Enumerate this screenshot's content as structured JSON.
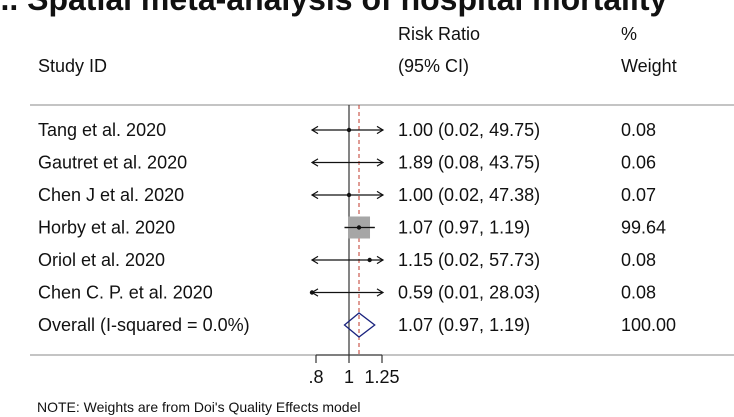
{
  "title_fragment": "g... Spatial meta-analysis of hospital mortality",
  "headers": {
    "study": "Study ID",
    "effect_line1": "Risk Ratio",
    "effect_line2": "(95% CI)",
    "weight_line1": "%",
    "weight_line2": "Weight"
  },
  "note": "NOTE: Weights are from Doi's Quality Effects model",
  "colors": {
    "text": "#111111",
    "ref_line": "#c0392b",
    "box": "#a6a6a6",
    "diamond": "#1a237e",
    "axis": "#333333",
    "rule": "#888888"
  },
  "chart_data": {
    "type": "forest",
    "xscale": "log",
    "xlim": [
      0.8,
      1.25
    ],
    "xticks": [
      0.8,
      1,
      1.25
    ],
    "xtick_labels": [
      ".8",
      "1",
      "1.25"
    ],
    "null_value": 1,
    "studies": [
      {
        "name": "Tang et al. 2020",
        "rr": 1.0,
        "lo": 0.02,
        "hi": 49.75,
        "ci_text": "1.00 (0.02, 49.75)",
        "weight": "0.08"
      },
      {
        "name": "Gautret et al. 2020",
        "rr": 1.89,
        "lo": 0.08,
        "hi": 43.75,
        "ci_text": "1.89 (0.08, 43.75)",
        "weight": "0.06"
      },
      {
        "name": "Chen J et al. 2020",
        "rr": 1.0,
        "lo": 0.02,
        "hi": 47.38,
        "ci_text": "1.00 (0.02, 47.38)",
        "weight": "0.07"
      },
      {
        "name": "Horby et al. 2020",
        "rr": 1.07,
        "lo": 0.97,
        "hi": 1.19,
        "ci_text": "1.07 (0.97, 1.19)",
        "weight": "99.64"
      },
      {
        "name": "Oriol et al. 2020",
        "rr": 1.15,
        "lo": 0.02,
        "hi": 57.73,
        "ci_text": "1.15 (0.02, 57.73)",
        "weight": "0.08"
      },
      {
        "name": "Chen C. P. et al. 2020",
        "rr": 0.59,
        "lo": 0.01,
        "hi": 28.03,
        "ci_text": "0.59 (0.01, 28.03)",
        "weight": "0.08"
      }
    ],
    "overall": {
      "name": "Overall (I-squared = 0.0%)",
      "rr": 1.07,
      "lo": 0.97,
      "hi": 1.19,
      "ci_text": "1.07 (0.97, 1.19)",
      "weight": "100.00"
    }
  }
}
